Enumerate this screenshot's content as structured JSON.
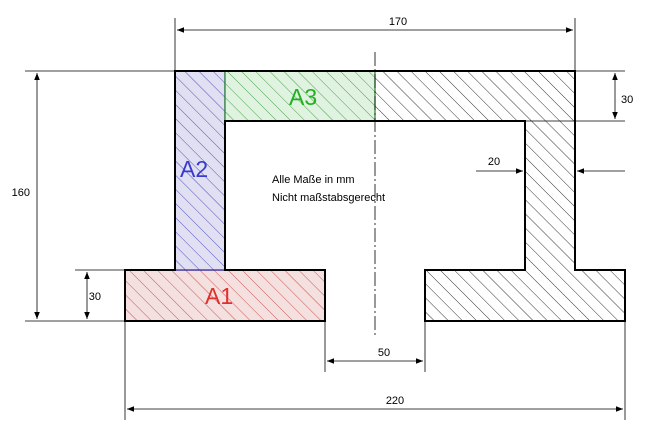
{
  "dimensions": {
    "top_width": "170",
    "total_width": "220",
    "height": "160",
    "flange_thickness_top": "30",
    "flange_thickness_bottom": "30",
    "web_thickness": "20",
    "bottom_gap": "50"
  },
  "areas": {
    "a1": {
      "label": "A1",
      "color": "#e0302c"
    },
    "a2": {
      "label": "A2",
      "color": "#3a3ad0"
    },
    "a3": {
      "label": "A3",
      "color": "#22b022"
    }
  },
  "notes": {
    "line1": "Alle Maße in mm",
    "line2": "Nicht maßstabsgerecht"
  }
}
